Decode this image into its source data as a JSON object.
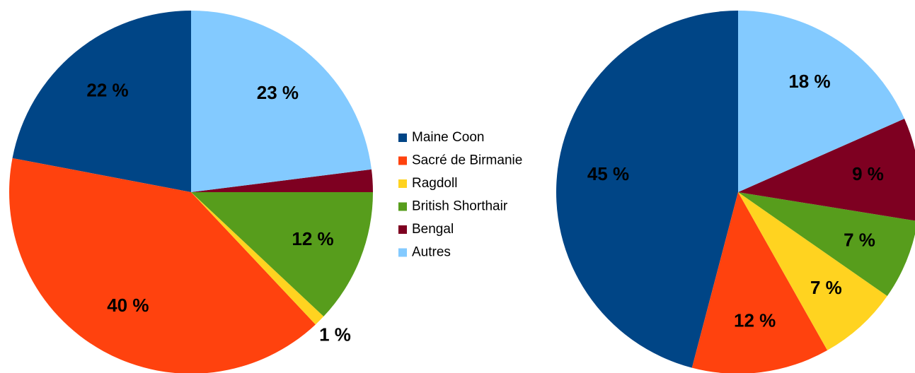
{
  "chart_data": [
    {
      "type": "pie",
      "categories": [
        "Maine Coon",
        "Sacré de Birmanie",
        "Ragdoll",
        "British Shorthair",
        "Bengal",
        "Autres"
      ],
      "colors": [
        "#004586",
        "#ff420e",
        "#ffd320",
        "#579d1c",
        "#7e0021",
        "#83caff"
      ],
      "values": [
        22,
        40,
        1,
        12,
        2,
        23
      ],
      "value_labels": [
        "22 %",
        "40 %",
        "1 %",
        "12 %",
        null,
        "23 %"
      ]
    },
    {
      "type": "pie",
      "values": [
        45,
        12,
        7,
        7,
        9,
        18
      ],
      "value_labels": [
        "45 %",
        "12 %",
        "7 %",
        "7 %",
        "9 %",
        "18 %"
      ]
    }
  ]
}
